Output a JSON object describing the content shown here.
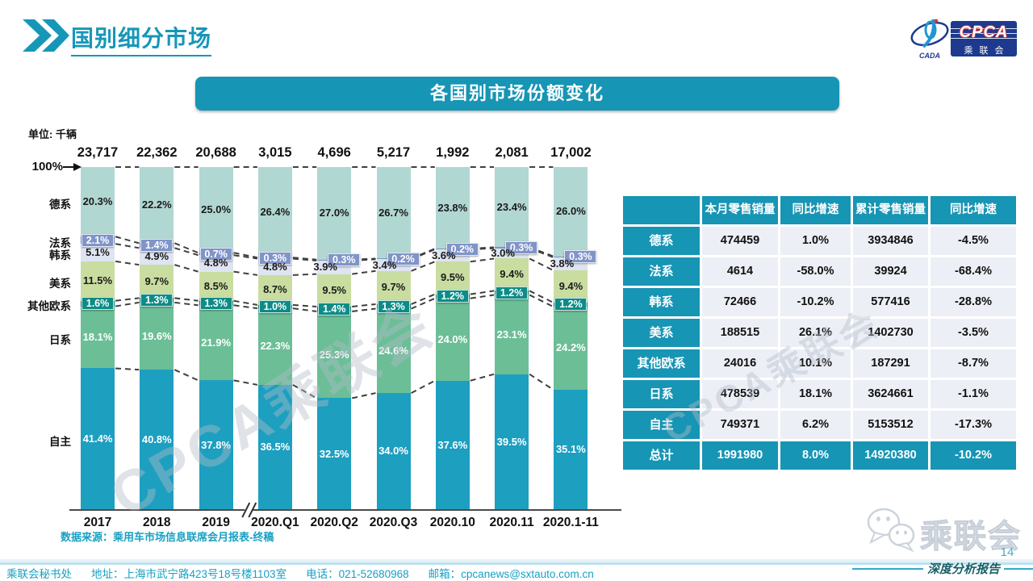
{
  "page": {
    "title": "国别细分市场",
    "page_number": "14",
    "tagline": "深度分析报告",
    "watermark": "CPCA乘联会"
  },
  "logo": {
    "cpca": "CPCA",
    "cada": "CADA",
    "cn_name": "乘联会"
  },
  "bottom_logo": {
    "name": "乘联会"
  },
  "banner": {
    "title": "各国别市场份额变化"
  },
  "colors": {
    "accent_teal": "#1697b8",
    "banner_teal": "#1795b4",
    "table_cell_bg": "#edeff6",
    "navy_logo": "#1d3a8f",
    "footer_text": "#18a0c2"
  },
  "chart_data": {
    "type": "bar",
    "subtype": "stacked-100pct-share",
    "title": "各国别市场份额变化",
    "unit": "单位: 千辆",
    "y_top_label": "100%",
    "ylim": [
      0,
      100
    ],
    "grid": false,
    "legend_position": "left-labels",
    "axis_break_after": "2019",
    "categories": [
      "2017",
      "2018",
      "2019",
      "2020.Q1",
      "2020.Q2",
      "2020.Q3",
      "2020.10",
      "2020.11",
      "2020.1-11"
    ],
    "totals": [
      "23,717",
      "22,362",
      "20,688",
      "3,015",
      "4,696",
      "5,217",
      "1,992",
      "2,081",
      "17,002"
    ],
    "series": [
      {
        "name": "德系",
        "values": [
          20.3,
          22.2,
          25.0,
          26.4,
          27.0,
          26.7,
          23.8,
          23.4,
          26.0
        ]
      },
      {
        "name": "法系",
        "values": [
          2.1,
          1.4,
          0.7,
          0.3,
          0.3,
          0.2,
          0.2,
          0.3,
          0.3
        ]
      },
      {
        "name": "韩系",
        "values": [
          5.1,
          4.9,
          4.8,
          4.8,
          3.9,
          3.4,
          3.6,
          3.0,
          3.8
        ]
      },
      {
        "name": "美系",
        "values": [
          11.5,
          9.7,
          8.5,
          8.7,
          9.5,
          9.7,
          9.5,
          9.4,
          9.4
        ]
      },
      {
        "name": "其他欧系",
        "values": [
          1.6,
          1.3,
          1.3,
          1.0,
          1.4,
          1.3,
          1.2,
          1.2,
          1.2
        ]
      },
      {
        "name": "日系",
        "values": [
          18.1,
          19.6,
          21.9,
          22.3,
          25.3,
          24.6,
          24.0,
          23.1,
          24.2
        ]
      },
      {
        "name": "自主",
        "values": [
          41.4,
          40.8,
          37.8,
          36.5,
          32.5,
          34.0,
          37.6,
          39.5,
          35.1
        ]
      }
    ],
    "colors_top_to_bottom": [
      "#b1d7d2",
      "#8094c8",
      "#dee4f1",
      "#c9dda1",
      "#0d8c87",
      "#6cbe97",
      "#1d9fc0"
    ],
    "label_styles_top_to_bottom": [
      "dark",
      "box-fr",
      "dark",
      "dark",
      "box-eu",
      "light",
      "light"
    ],
    "source": "数据来源：乘用车市场信息联席会月报表-终稿"
  },
  "table": {
    "headers": [
      "",
      "本月零售销量",
      "同比增速",
      "累计零售销量",
      "同比增速"
    ],
    "rows": [
      {
        "label": "德系",
        "cells": [
          "474459",
          "1.0%",
          "3934846",
          "-4.5%"
        ],
        "is_total": false
      },
      {
        "label": "法系",
        "cells": [
          "4614",
          "-58.0%",
          "39924",
          "-68.4%"
        ],
        "is_total": false
      },
      {
        "label": "韩系",
        "cells": [
          "72466",
          "-10.2%",
          "577416",
          "-28.8%"
        ],
        "is_total": false
      },
      {
        "label": "美系",
        "cells": [
          "188515",
          "26.1%",
          "1402730",
          "-3.5%"
        ],
        "is_total": false
      },
      {
        "label": "其他欧系",
        "cells": [
          "24016",
          "10.1%",
          "187291",
          "-8.7%"
        ],
        "is_total": false
      },
      {
        "label": "日系",
        "cells": [
          "478539",
          "18.1%",
          "3624661",
          "-1.1%"
        ],
        "is_total": false
      },
      {
        "label": "自主",
        "cells": [
          "749371",
          "6.2%",
          "5153512",
          "-17.3%"
        ],
        "is_total": false
      },
      {
        "label": "总计",
        "cells": [
          "1991980",
          "8.0%",
          "14920380",
          "-10.2%"
        ],
        "is_total": true
      }
    ]
  },
  "footer": {
    "org": "乘联会秘书处",
    "address": "地址：上海市武宁路423号18号楼1103室",
    "phone": "电话：021-52680968",
    "email": "邮箱：cpcanews@sxtauto.com.cn"
  }
}
